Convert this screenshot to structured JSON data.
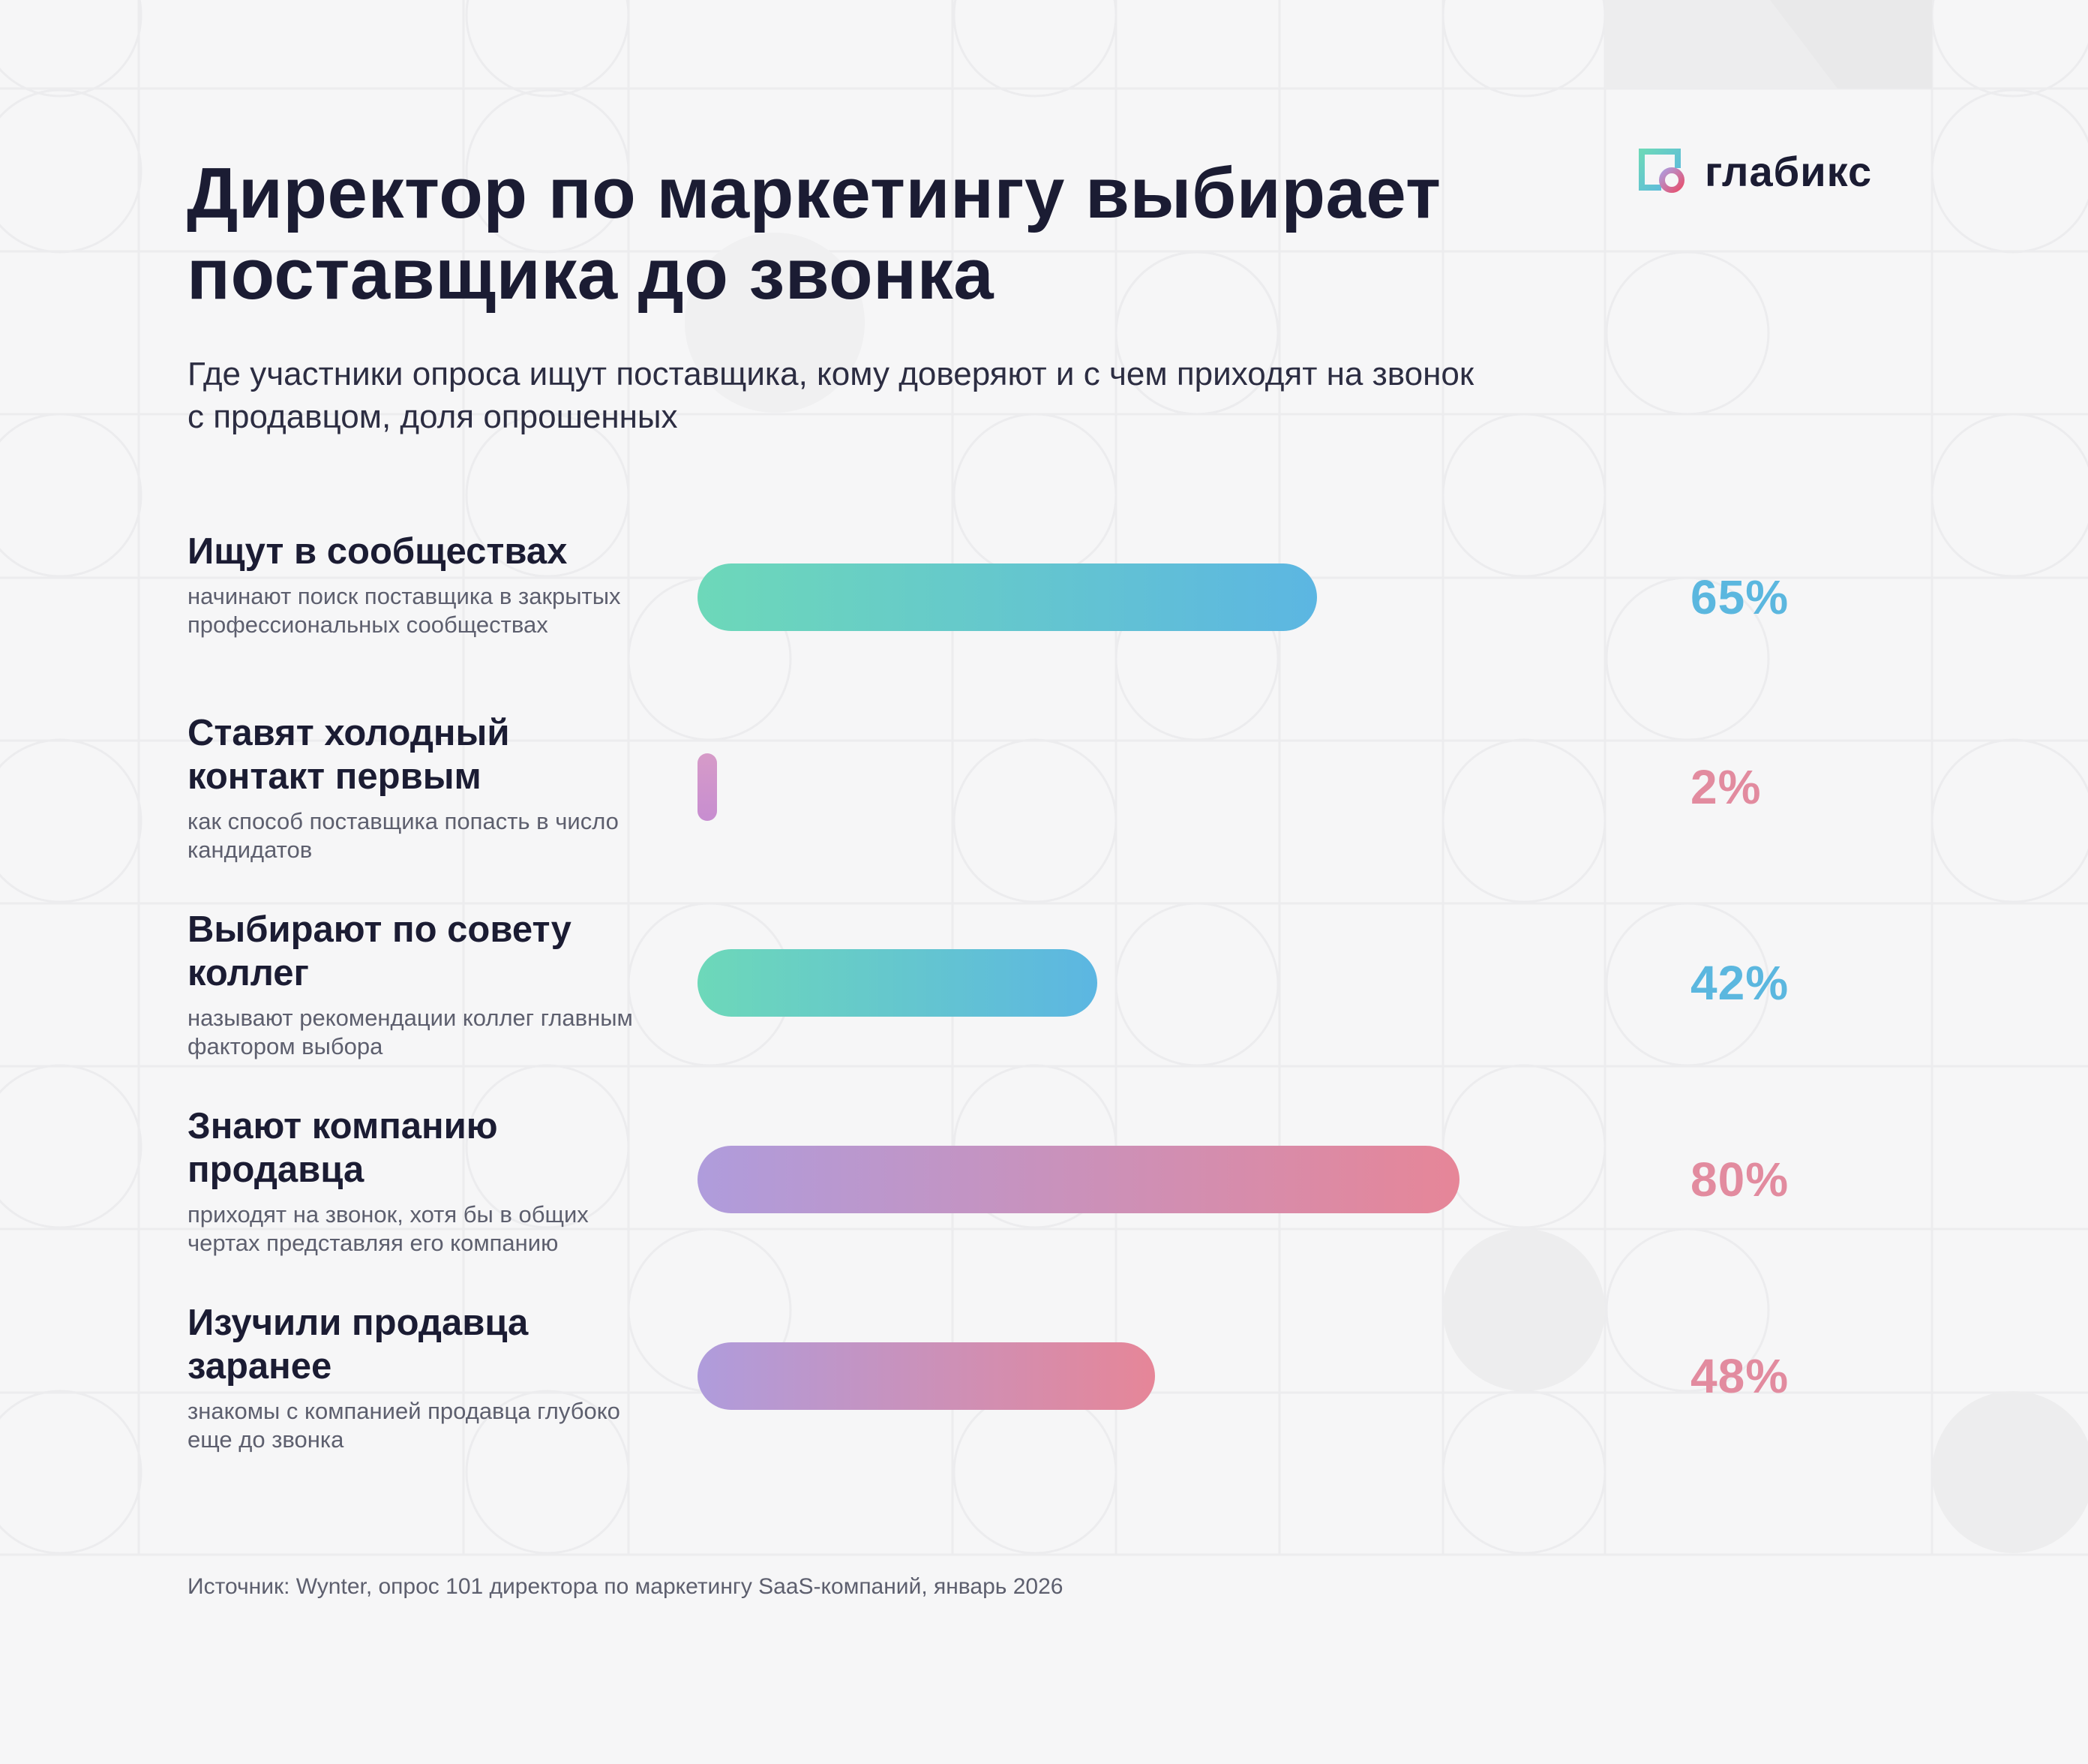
{
  "brand": {
    "name": "глабикс",
    "colors": {
      "background": "#f6f6f7",
      "ink": "#1b1c33",
      "teal_start": "#6dd8b9",
      "teal_end": "#5cb6e2",
      "pink_start": "#af9cdc",
      "pink_end": "#e68698"
    }
  },
  "header": {
    "title": "Директор по маркетингу выбирает поставщика до звонка",
    "subtitle": "Где участники опроса ищут поставщика, кому доверяют и с чем приходят на звонок с продавцом, доля опрошенных"
  },
  "chart_data": {
    "type": "bar",
    "orientation": "horizontal",
    "unit": "%",
    "xlim": [
      0,
      100
    ],
    "grid": false,
    "legend": "none",
    "categories": [
      "Ищут в сообществах",
      "Ставят холодный контакт первым",
      "Выбирают по совету коллег",
      "Знают компанию продавца",
      "Изучили продавца заранее"
    ],
    "values": [
      65,
      2,
      42,
      80,
      48
    ],
    "rows": [
      {
        "label": "Ищут в сообществах",
        "description": "начинают поиск поставщика в закрытых профессиональных сообществах",
        "value": 65,
        "value_label": "65%",
        "color_theme": "teal"
      },
      {
        "label": "Ставят холодный контакт первым",
        "description": "как способ поставщика попасть в число кандидатов",
        "value": 2,
        "value_label": "2%",
        "color_theme": "pink"
      },
      {
        "label": "Выбирают по совету коллег",
        "description": "называют рекомендации коллег главным фактором выбора",
        "value": 42,
        "value_label": "42%",
        "color_theme": "teal"
      },
      {
        "label": "Знают компанию продавца",
        "description": "приходят на звонок, хотя бы в общих чертах представляя его компанию",
        "value": 80,
        "value_label": "80%",
        "color_theme": "pink"
      },
      {
        "label": "Изучили продавца заранее",
        "description": "знакомы с компанией продавца глубоко еще до звонка",
        "value": 48,
        "value_label": "48%",
        "color_theme": "pink"
      }
    ]
  },
  "footer": {
    "source": "Источник: Wynter, опрос 101 директора по маркетингу SaaS-компаний, январь 2026"
  }
}
